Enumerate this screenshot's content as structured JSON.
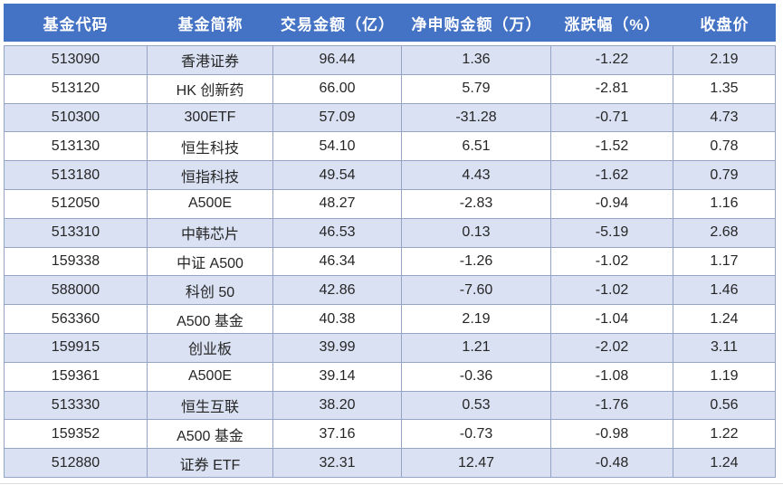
{
  "chart_data": {
    "type": "table",
    "columns": [
      "基金代码",
      "基金简称",
      "交易金额（亿）",
      "净申购金额（万）",
      "涨跌幅（%）",
      "收盘价"
    ],
    "rows": [
      [
        "513090",
        "香港证券",
        "96.44",
        "1.36",
        "-1.22",
        "2.19"
      ],
      [
        "513120",
        "HK 创新药",
        "66.00",
        "5.79",
        "-2.81",
        "1.35"
      ],
      [
        "510300",
        "300ETF",
        "57.09",
        "-31.28",
        "-0.71",
        "4.73"
      ],
      [
        "513130",
        "恒生科技",
        "54.10",
        "6.51",
        "-1.52",
        "0.78"
      ],
      [
        "513180",
        "恒指科技",
        "49.54",
        "4.43",
        "-1.62",
        "0.79"
      ],
      [
        "512050",
        "A500E",
        "48.27",
        "-2.83",
        "-0.94",
        "1.16"
      ],
      [
        "513310",
        "中韩芯片",
        "46.53",
        "0.13",
        "-5.19",
        "2.68"
      ],
      [
        "159338",
        "中证 A500",
        "46.34",
        "-1.26",
        "-1.02",
        "1.17"
      ],
      [
        "588000",
        "科创 50",
        "42.86",
        "-7.60",
        "-1.02",
        "1.46"
      ],
      [
        "563360",
        "A500 基金",
        "40.38",
        "2.19",
        "-1.04",
        "1.24"
      ],
      [
        "159915",
        "创业板",
        "39.99",
        "1.21",
        "-2.02",
        "3.11"
      ],
      [
        "159361",
        "A500E",
        "39.14",
        "-0.36",
        "-1.08",
        "1.19"
      ],
      [
        "513330",
        "恒生互联",
        "38.20",
        "0.53",
        "-1.76",
        "0.56"
      ],
      [
        "159352",
        "A500 基金",
        "37.16",
        "-0.73",
        "-0.98",
        "1.22"
      ],
      [
        "512880",
        "证券 ETF",
        "32.31",
        "12.47",
        "-0.48",
        "1.24"
      ]
    ],
    "layout": {
      "banded_rows": true,
      "header_position": "top",
      "column_alignment": "center"
    }
  },
  "colors": {
    "header_bg": "#4472C4",
    "header_text": "#FFFFFF",
    "stripe_bg": "#D9E1F2",
    "row_bg": "#FFFFFF",
    "border": "#95A3C5",
    "text": "#262626",
    "bottom_line": "#DBDBDB"
  }
}
